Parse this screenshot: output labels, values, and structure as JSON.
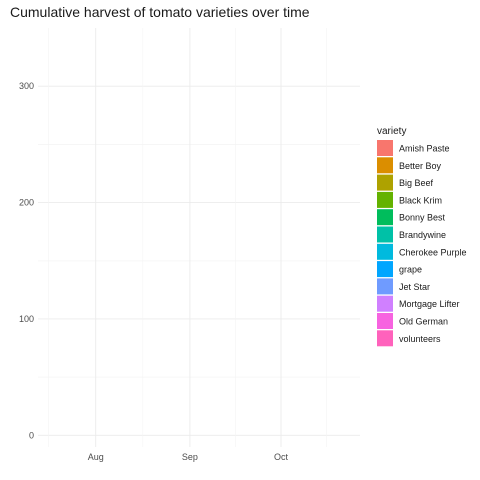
{
  "chart_data": {
    "type": "area",
    "title": "Cumulative harvest of tomato varieties over time",
    "xlabel": "",
    "ylabel": "",
    "x_axis": {
      "type": "date",
      "ticks": [
        "Aug",
        "Sep",
        "Oct"
      ],
      "range": [
        "2019-07-13",
        "2019-10-27"
      ]
    },
    "ylim": [
      -10,
      350
    ],
    "y_ticks": [
      0,
      100,
      200,
      300
    ],
    "grid": true,
    "legend": {
      "title": "variety",
      "placement": "right",
      "entries": [
        {
          "name": "Amish Paste",
          "color": "#F8766D"
        },
        {
          "name": "Better Boy",
          "color": "#DB8E00"
        },
        {
          "name": "Big Beef",
          "color": "#AEA200"
        },
        {
          "name": "Black Krim",
          "color": "#64B200"
        },
        {
          "name": "Bonny Best",
          "color": "#00BD5C"
        },
        {
          "name": "Brandywine",
          "color": "#00C1A7"
        },
        {
          "name": "Cherokee Purple",
          "color": "#00BADE"
        },
        {
          "name": "grape",
          "color": "#00A6FF"
        },
        {
          "name": "Jet Star",
          "color": "#6F9BFF"
        },
        {
          "name": "Mortgage Lifter",
          "color": "#D080FF"
        },
        {
          "name": "Old German",
          "color": "#F763E0"
        },
        {
          "name": "volunteers",
          "color": "#FF62BC"
        }
      ]
    },
    "series": []
  }
}
